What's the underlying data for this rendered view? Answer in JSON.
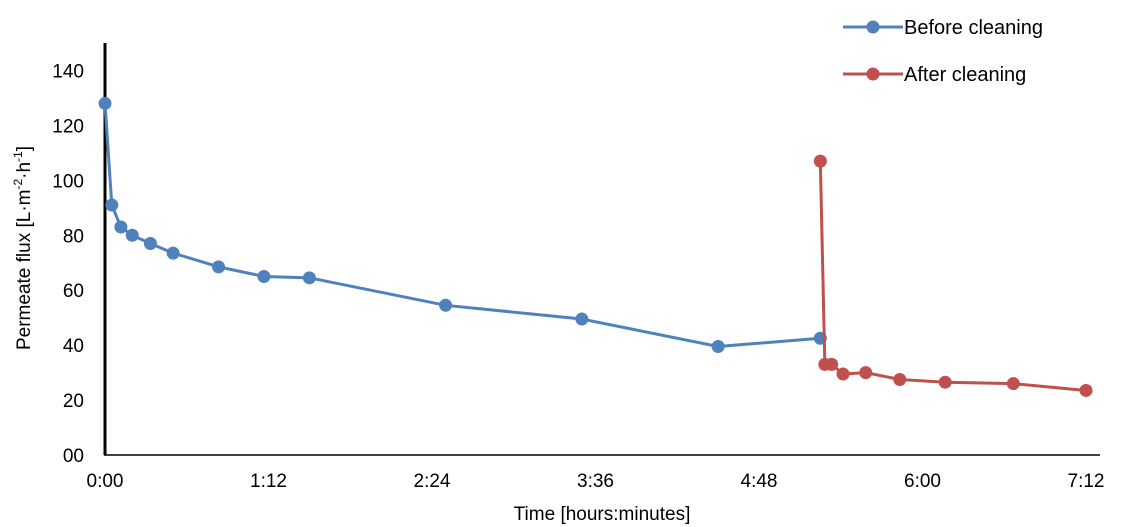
{
  "chart_data": {
    "type": "line",
    "title": "",
    "xlabel": "Time [hours:minutes]",
    "ylabel_parts": [
      "Permeate flux [L·m",
      "-2",
      "·h",
      "-1",
      "]"
    ],
    "xlim_minutes": [
      0,
      432
    ],
    "ylim": [
      0,
      150
    ],
    "x_ticks": [
      {
        "minutes": 0,
        "label": "0:00"
      },
      {
        "minutes": 72,
        "label": "1:12"
      },
      {
        "minutes": 144,
        "label": "2:24"
      },
      {
        "minutes": 216,
        "label": "3:36"
      },
      {
        "minutes": 288,
        "label": "4:48"
      },
      {
        "minutes": 360,
        "label": "6:00"
      },
      {
        "minutes": 432,
        "label": "7:12"
      }
    ],
    "y_ticks": [
      {
        "value": 0,
        "label": "00"
      },
      {
        "value": 20,
        "label": "20"
      },
      {
        "value": 40,
        "label": "40"
      },
      {
        "value": 60,
        "label": "60"
      },
      {
        "value": 80,
        "label": "80"
      },
      {
        "value": 100,
        "label": "100"
      },
      {
        "value": 120,
        "label": "120"
      },
      {
        "value": 140,
        "label": "140"
      }
    ],
    "grid": false,
    "legend_position": "top-right",
    "series": [
      {
        "name": "Before cleaning",
        "color": "#4f81bd",
        "x_minutes": [
          0,
          3,
          7,
          12,
          20,
          30,
          50,
          70,
          90,
          150,
          210,
          270,
          315
        ],
        "y": [
          128,
          91,
          83,
          80,
          77,
          73.5,
          68.5,
          65,
          64.5,
          54.5,
          49.5,
          39.5,
          42.5
        ]
      },
      {
        "name": "After cleaning",
        "color": "#c0504d",
        "x_minutes": [
          315,
          317,
          320,
          325,
          335,
          350,
          370,
          400,
          432
        ],
        "y": [
          107,
          33,
          33,
          29.5,
          30,
          27.5,
          26.5,
          26,
          23.5
        ]
      }
    ]
  }
}
